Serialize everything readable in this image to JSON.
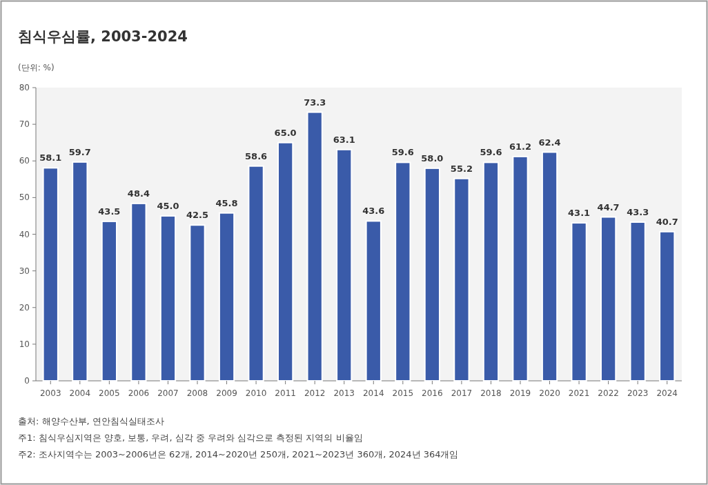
{
  "chart_data": {
    "type": "bar",
    "title": "침식우심률, 2003-2024",
    "ylabel": "(단위: %)",
    "categories": [
      "2003",
      "2004",
      "2005",
      "2006",
      "2007",
      "2008",
      "2009",
      "2010",
      "2011",
      "2012",
      "2013",
      "2014",
      "2015",
      "2016",
      "2017",
      "2018",
      "2019",
      "2020",
      "2021",
      "2022",
      "2023",
      "2024"
    ],
    "values": [
      58.1,
      59.7,
      43.5,
      48.4,
      45.0,
      42.5,
      45.8,
      58.6,
      65.0,
      73.3,
      63.1,
      43.6,
      59.6,
      58.0,
      55.2,
      59.6,
      61.2,
      62.4,
      43.1,
      44.7,
      43.3,
      40.7
    ],
    "value_labels": [
      "58.1",
      "59.7",
      "43.5",
      "48.4",
      "45.0",
      "42.5",
      "45.8",
      "58.6",
      "65.0",
      "73.3",
      "63.1",
      "43.6",
      "59.6",
      "58.0",
      "55.2",
      "59.6",
      "61.2",
      "62.4",
      "43.1",
      "44.7",
      "43.3",
      "40.7"
    ],
    "color": "#3a5ba9",
    "ylim": [
      0,
      80
    ],
    "yticks": [
      0,
      10,
      20,
      30,
      40,
      50,
      60,
      70,
      80
    ],
    "grid": false,
    "annotations": [
      "출처: 해양수산부, 연안침식실태조사",
      "주1: 침식우심지역은 양호, 보통, 우려, 심각 중 우려와 심각으로 측정된 지역의 비율임",
      "주2: 조사지역수는 2003~2006년은 62개, 2014~2020년 250개, 2021~2023년 360개, 2024년 364개임"
    ]
  }
}
